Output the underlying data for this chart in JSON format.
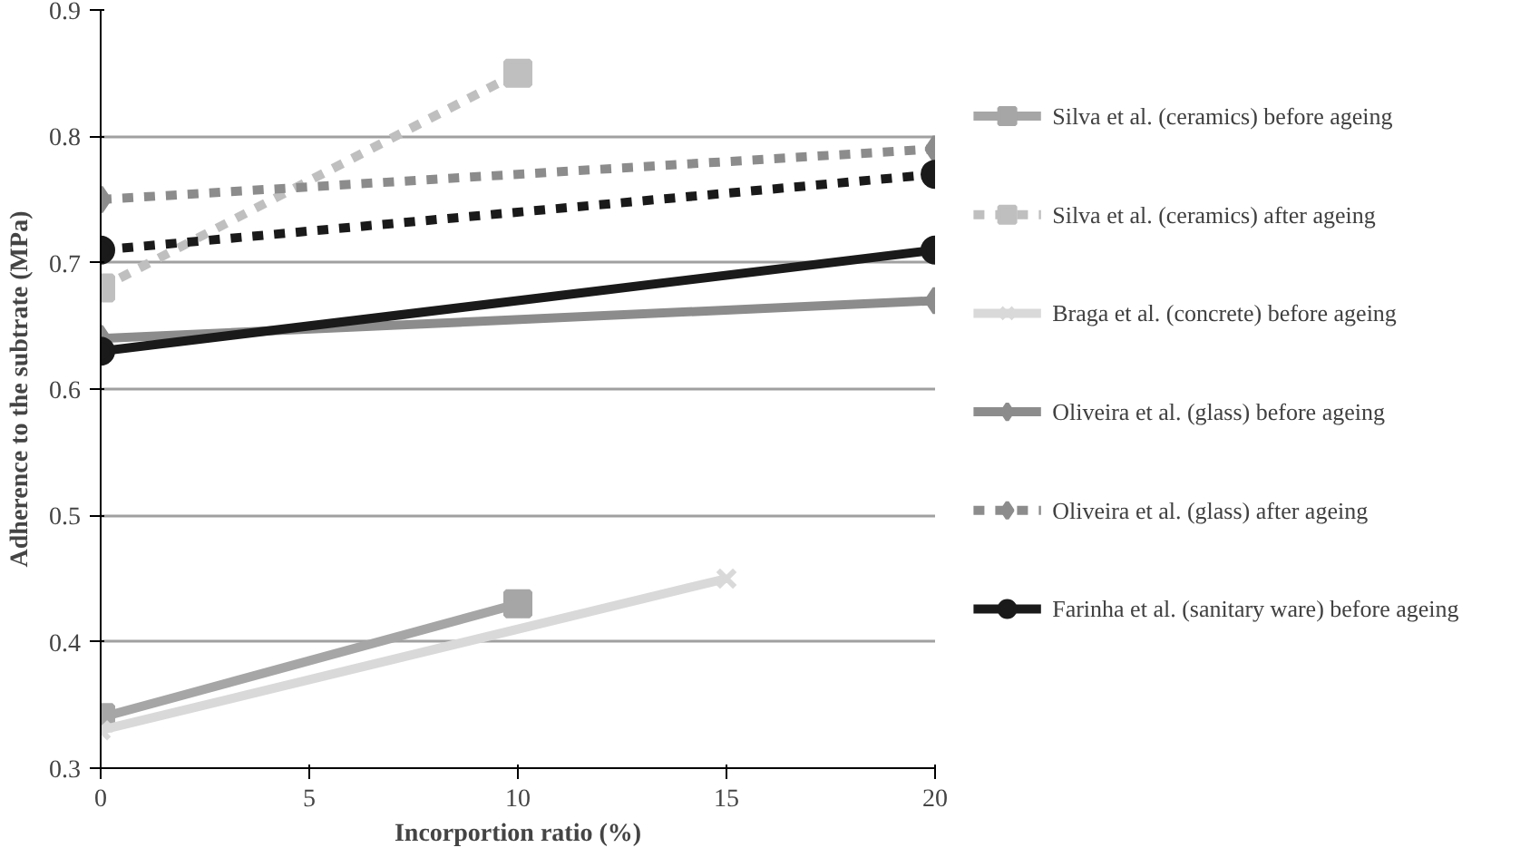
{
  "chart_data": {
    "type": "line",
    "xlabel": "Incorportion ratio (%)",
    "ylabel": "Adherence to the subtrate (MPa)",
    "xlim": [
      0,
      20
    ],
    "xticks": [
      0,
      5,
      10,
      15,
      20
    ],
    "ylim": [
      0.3,
      0.9
    ],
    "yticks": [
      0.3,
      0.4,
      0.5,
      0.6,
      0.7,
      0.8,
      0.9
    ],
    "grid": "y",
    "legend": "right",
    "series": [
      {
        "name": "Silva et al. (ceramics) before ageing",
        "color": "#a6a6a6",
        "x": [
          0,
          10
        ],
        "values": [
          0.34,
          0.43
        ],
        "marker": "square",
        "line_style": "solid"
      },
      {
        "name": "Silva et al. (ceramics) after ageing",
        "color": "#bfbfbf",
        "x": [
          0,
          10
        ],
        "values": [
          0.68,
          0.85
        ],
        "marker": "square",
        "line_style": "dashed"
      },
      {
        "name": "Braga et al. (concrete) before ageing",
        "color": "#d9d9d9",
        "x": [
          0,
          15
        ],
        "values": [
          0.33,
          0.45
        ],
        "marker": "cross",
        "line_style": "solid"
      },
      {
        "name": "Oliveira et al. (glass) before ageing",
        "color": "#8c8c8c",
        "x": [
          0,
          20
        ],
        "values": [
          0.64,
          0.67
        ],
        "marker": "diamond",
        "line_style": "solid"
      },
      {
        "name": "Oliveira et al. (glass) after ageing",
        "color": "#8c8c8c",
        "x": [
          0,
          20
        ],
        "values": [
          0.75,
          0.79
        ],
        "marker": "diamond",
        "line_style": "dashed"
      },
      {
        "name": "Farinha et al. (sanitary ware) before ageing",
        "color": "#1a1a1a",
        "x": [
          0,
          20
        ],
        "values": [
          0.63,
          0.71
        ],
        "marker": "circle",
        "line_style": "solid"
      },
      {
        "color": "#1a1a1a",
        "x": [
          0,
          20
        ],
        "values": [
          0.71,
          0.77
        ],
        "marker": "circle",
        "line_style": "dashed"
      }
    ]
  }
}
